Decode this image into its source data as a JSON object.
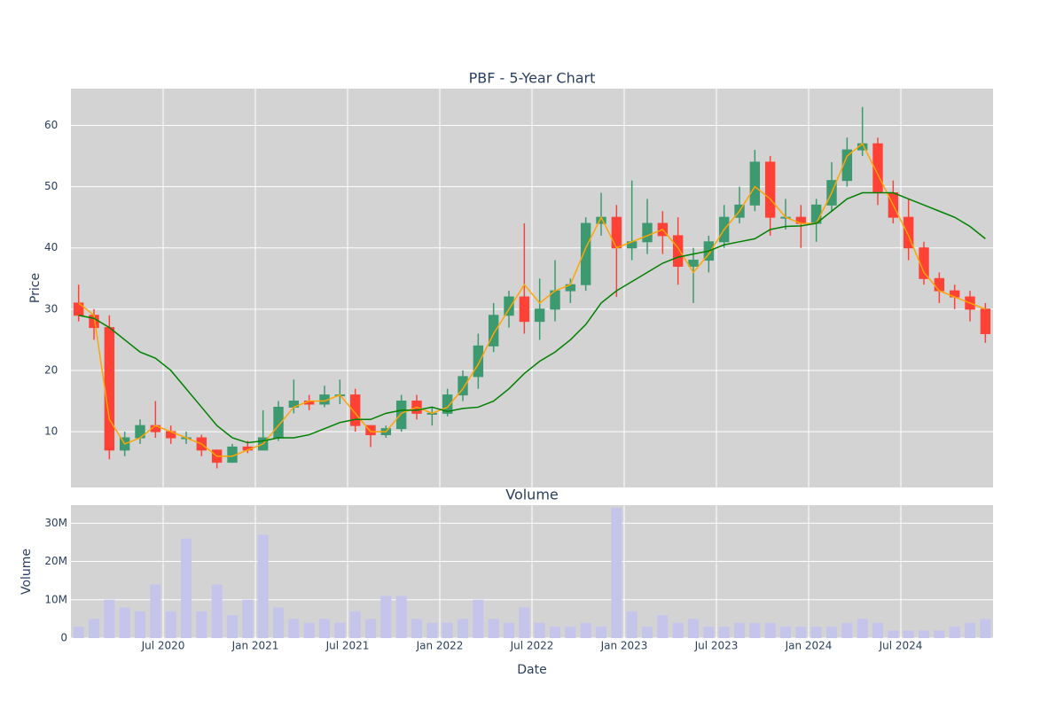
{
  "chart_data": [
    {
      "type": "candlestick",
      "title": "PBF - 5-Year Chart",
      "y_label": "Price",
      "x": [
        "2020-01",
        "2020-02",
        "2020-03",
        "2020-04",
        "2020-05",
        "2020-06",
        "2020-07",
        "2020-08",
        "2020-09",
        "2020-10",
        "2020-11",
        "2020-12",
        "2021-01",
        "2021-02",
        "2021-03",
        "2021-04",
        "2021-05",
        "2021-06",
        "2021-07",
        "2021-08",
        "2021-09",
        "2021-10",
        "2021-11",
        "2021-12",
        "2022-01",
        "2022-02",
        "2022-03",
        "2022-04",
        "2022-05",
        "2022-06",
        "2022-07",
        "2022-08",
        "2022-09",
        "2022-10",
        "2022-11",
        "2022-12",
        "2023-01",
        "2023-02",
        "2023-03",
        "2023-04",
        "2023-05",
        "2023-06",
        "2023-07",
        "2023-08",
        "2023-09",
        "2023-10",
        "2023-11",
        "2023-12",
        "2024-01",
        "2024-02",
        "2024-03",
        "2024-04",
        "2024-05",
        "2024-06",
        "2024-07",
        "2024-08",
        "2024-09",
        "2024-10",
        "2024-11",
        "2024-12"
      ],
      "xlim": [
        "2020-01",
        "2025-01"
      ],
      "open": [
        31,
        29,
        27,
        7,
        9,
        11,
        10,
        9,
        9,
        7,
        5,
        7.5,
        7,
        9,
        14,
        15,
        14.5,
        16,
        16,
        11,
        9.5,
        10.5,
        15,
        13,
        13,
        16,
        19,
        24,
        29,
        32,
        28,
        30,
        33,
        34,
        44,
        45,
        40,
        41,
        44,
        42,
        37,
        38,
        41,
        45,
        47,
        54,
        45,
        45,
        44,
        47,
        51,
        56,
        57,
        49,
        45,
        40,
        35,
        33,
        32,
        30
      ],
      "high": [
        34,
        30,
        29,
        10,
        12,
        15,
        11,
        10,
        9.5,
        7,
        8,
        8.5,
        13.5,
        15,
        18.5,
        16,
        17.5,
        18.5,
        17,
        11,
        11,
        16,
        16,
        14,
        17,
        20,
        26,
        31,
        33,
        44,
        35,
        38,
        35,
        45,
        49,
        47,
        51,
        48,
        46,
        45,
        40,
        42,
        47,
        50,
        56,
        55,
        48,
        47,
        48,
        54,
        58,
        63,
        58,
        51,
        48,
        41,
        36,
        34,
        33,
        31
      ],
      "low": [
        28,
        25,
        5.5,
        6,
        8,
        9,
        8,
        8,
        6,
        4,
        5,
        6.5,
        7,
        8.5,
        13,
        13.5,
        14,
        14.5,
        10,
        7.5,
        9,
        10,
        12,
        11,
        12.5,
        15,
        17,
        23,
        27,
        26,
        25,
        28,
        31,
        33,
        42,
        32,
        38,
        39,
        39,
        34,
        31,
        36,
        40,
        44,
        46,
        42,
        43,
        40,
        41,
        46,
        50,
        55,
        47,
        44,
        38,
        34,
        31,
        30,
        28,
        24.5
      ],
      "close": [
        29,
        27,
        7,
        9,
        11,
        10,
        9,
        9,
        7,
        5,
        7.5,
        7,
        9,
        14,
        15,
        14.5,
        16,
        16,
        11,
        9.5,
        10.5,
        15,
        13,
        13,
        16,
        19,
        24,
        29,
        32,
        28,
        30,
        33,
        34,
        44,
        45,
        40,
        41,
        44,
        42,
        37,
        38,
        41,
        45,
        47,
        54,
        45,
        45,
        44,
        47,
        51,
        56,
        57,
        49,
        45,
        40,
        35,
        33,
        32,
        30,
        26
      ],
      "increasing_color": "#3d9970",
      "decreasing_color": "#ff4136",
      "lines": [
        {
          "color": "orange",
          "values": [
            31,
            29,
            12,
            8,
            9,
            11,
            10,
            9,
            8,
            6,
            6,
            7,
            8,
            11,
            14,
            15,
            15,
            16,
            13,
            10,
            10,
            13,
            14,
            13,
            14,
            17,
            21,
            26,
            30,
            34,
            31,
            33,
            34,
            40,
            45,
            40,
            41,
            42,
            43,
            40,
            36,
            39,
            43,
            46,
            50,
            48,
            45,
            44,
            44,
            49,
            55,
            57,
            52,
            47,
            42,
            36,
            33,
            32,
            31,
            30
          ]
        },
        {
          "color": "green",
          "values": [
            29,
            28.5,
            27,
            25,
            23,
            22,
            20,
            17,
            14,
            11,
            9,
            8.2,
            8.5,
            9,
            9,
            9.5,
            10.5,
            11.5,
            12,
            12,
            13,
            13.5,
            13.5,
            14,
            13.3,
            13.8,
            14,
            15,
            17,
            19.5,
            21.5,
            23,
            25,
            27.5,
            31,
            33,
            34.5,
            36,
            37.5,
            38.5,
            39,
            39.5,
            40.5,
            41,
            41.5,
            43,
            43.5,
            43.6,
            44,
            46,
            48,
            49,
            49,
            49,
            48,
            47,
            46,
            45,
            43.5,
            41.5
          ]
        }
      ],
      "ylim": [
        0.9,
        66
      ],
      "yticks": [
        10,
        20,
        30,
        40,
        50,
        60
      ],
      "grid": true
    },
    {
      "type": "bar",
      "title": "Volume",
      "y_label": "Volume",
      "x_label": "Date",
      "color": "#c5c5ec",
      "values": [
        3000000,
        5000000,
        10000000,
        8000000,
        7000000,
        14000000,
        7000000,
        26000000,
        7000000,
        14000000,
        6000000,
        10000000,
        27000000,
        8000000,
        5000000,
        4000000,
        5000000,
        4000000,
        7000000,
        5000000,
        11000000,
        11000000,
        5000000,
        4000000,
        4000000,
        5000000,
        10000000,
        5000000,
        4000000,
        8000000,
        4000000,
        3000000,
        3000000,
        4000000,
        3000000,
        34000000,
        7000000,
        3000000,
        6000000,
        4000000,
        5000000,
        3000000,
        3000000,
        4000000,
        4000000,
        4000000,
        3000000,
        3000000,
        3000000,
        3000000,
        4000000,
        5000000,
        4000000,
        2000000,
        2000000,
        2000000,
        2000000,
        3000000,
        4000000,
        5000000
      ],
      "ylim": [
        0,
        34700000
      ],
      "yticks": [
        0,
        {
          "value": 10000000,
          "label": "10M"
        },
        {
          "value": 20000000,
          "label": "20M"
        },
        {
          "value": 30000000,
          "label": "30M"
        }
      ],
      "xticks": [
        {
          "value": "2020-07",
          "label": "Jul 2020"
        },
        {
          "value": "2021-01",
          "label": "Jan 2021"
        },
        {
          "value": "2021-07",
          "label": "Jul 2021"
        },
        {
          "value": "2022-01",
          "label": "Jan 2022"
        },
        {
          "value": "2022-07",
          "label": "Jul 2022"
        },
        {
          "value": "2023-01",
          "label": "Jan 2023"
        },
        {
          "value": "2023-07",
          "label": "Jul 2023"
        },
        {
          "value": "2024-01",
          "label": "Jan 2024"
        },
        {
          "value": "2024-07",
          "label": "Jul 2024"
        }
      ],
      "grid": true
    }
  ]
}
